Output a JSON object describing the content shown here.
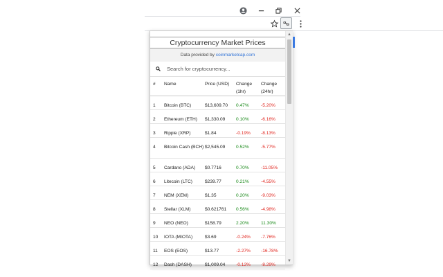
{
  "chrome": {
    "window_icons": [
      "account-icon",
      "minimize-icon",
      "restore-icon",
      "close-icon"
    ],
    "toolbar_icons": [
      "star-icon",
      "extension-icon",
      "menu-icon"
    ]
  },
  "popup": {
    "title": "Cryptocurrency Market Prices",
    "provider_prefix": "Data provided by",
    "provider_link": "coinmarketcap.com",
    "search_placeholder": "Search for cryptocurrency...",
    "columns": {
      "rank": "#",
      "name": "Name",
      "price": "Price (USD)",
      "change1h": "Change (1hr)",
      "change24h": "Change (24hr)"
    },
    "rows": [
      {
        "rank": "1",
        "name": "Bitcoin (BTC)",
        "price": "$13,609.70",
        "change1h": "0.47%",
        "change24h": "-5.20%"
      },
      {
        "rank": "2",
        "name": "Ethereum (ETH)",
        "price": "$1,330.09",
        "change1h": "0.10%",
        "change24h": "-6.16%"
      },
      {
        "rank": "3",
        "name": "Ripple (XRP)",
        "price": "$1.84",
        "change1h": "-0.19%",
        "change24h": "-8.13%"
      },
      {
        "rank": "4",
        "name": "Bitcoin Cash (BCH)",
        "price": "$2,545.09",
        "change1h": "0.52%",
        "change24h": "-5.77%"
      },
      {
        "rank": "5",
        "name": "Cardano (ADA)",
        "price": "$0.7716",
        "change1h": "0.70%",
        "change24h": "-11.05%"
      },
      {
        "rank": "6",
        "name": "Litecoin (LTC)",
        "price": "$239.77",
        "change1h": "0.21%",
        "change24h": "-4.55%"
      },
      {
        "rank": "7",
        "name": "NEM (XEM)",
        "price": "$1.35",
        "change1h": "0.20%",
        "change24h": "-9.03%"
      },
      {
        "rank": "8",
        "name": "Stellar (XLM)",
        "price": "$0.621761",
        "change1h": "0.56%",
        "change24h": "-4.98%"
      },
      {
        "rank": "9",
        "name": "NEO (NEO)",
        "price": "$158.79",
        "change1h": "2.20%",
        "change24h": "11.30%"
      },
      {
        "rank": "10",
        "name": "IOTA (MIOTA)",
        "price": "$3.69",
        "change1h": "-0.24%",
        "change24h": "-7.76%"
      },
      {
        "rank": "11",
        "name": "EOS (EOS)",
        "price": "$13.77",
        "change1h": "-2.27%",
        "change24h": "-16.78%"
      },
      {
        "rank": "12",
        "name": "Dash (DASH)",
        "price": "$1,009.04",
        "change1h": "-0.12%",
        "change24h": "-8.29%"
      }
    ]
  },
  "colors": {
    "positive": "#1b8a1b",
    "negative": "#e0241d",
    "link": "#2a6fd6",
    "accent": "#4285f4"
  }
}
